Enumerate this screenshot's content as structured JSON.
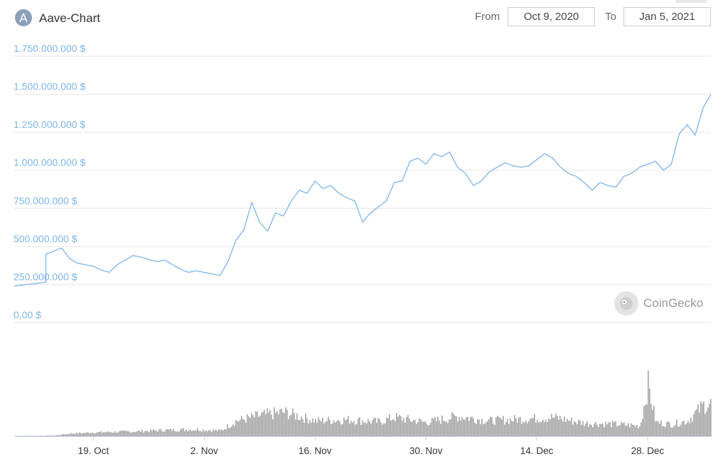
{
  "header": {
    "title": "Aave-Chart",
    "from_label": "From",
    "from_value": "Oct 9, 2020",
    "to_label": "To",
    "to_value": "Jan 5, 2021"
  },
  "watermark": {
    "text": "CoinGecko",
    "icon": "gecko-icon"
  },
  "colors": {
    "line": "#7cb5ec",
    "volume": "#a3a3a3",
    "grid": "#e6e6e6"
  },
  "chart_data": {
    "type": "line",
    "ylabel": "",
    "xlabel": "",
    "ylim": [
      0,
      1750000000
    ],
    "ytick_labels": [
      "0,00 $",
      "250.000.000 $",
      "500.000.000 $",
      "750.000.000 $",
      "1.000.000.000 $",
      "1.250.000.000 $",
      "1.500.000.000 $",
      "1.750.000.000 $"
    ],
    "ytick_values": [
      0,
      250000000,
      500000000,
      750000000,
      1000000000,
      1250000000,
      1500000000,
      1750000000
    ],
    "xtick_labels": [
      "19. Oct",
      "2. Nov",
      "16. Nov",
      "30. Nov",
      "14. Dec",
      "28. Dec"
    ],
    "xtick_dates": [
      "2020-10-19",
      "2020-11-02",
      "2020-11-16",
      "2020-11-30",
      "2020-12-14",
      "2020-12-28"
    ],
    "x_range": [
      "2020-10-09",
      "2021-01-05"
    ],
    "grid": true,
    "series": [
      {
        "values_unit": "USD",
        "x": [
          "2020-10-09",
          "2020-10-13",
          "2020-10-13",
          "2020-10-14",
          "2020-10-15",
          "2020-10-16",
          "2020-10-17",
          "2020-10-18",
          "2020-10-19",
          "2020-10-20",
          "2020-10-21",
          "2020-10-22",
          "2020-10-24",
          "2020-10-25",
          "2020-10-26",
          "2020-10-27",
          "2020-10-28",
          "2020-10-29",
          "2020-10-30",
          "2020-10-31",
          "2020-11-01",
          "2020-11-02",
          "2020-11-03",
          "2020-11-04",
          "2020-11-05",
          "2020-11-06",
          "2020-11-07",
          "2020-11-08",
          "2020-11-09",
          "2020-11-10",
          "2020-11-11",
          "2020-11-12",
          "2020-11-13",
          "2020-11-14",
          "2020-11-15",
          "2020-11-16",
          "2020-11-17",
          "2020-11-18",
          "2020-11-19",
          "2020-11-20",
          "2020-11-21",
          "2020-11-22",
          "2020-11-23",
          "2020-11-24",
          "2020-11-25",
          "2020-11-26",
          "2020-11-27",
          "2020-11-28",
          "2020-11-29",
          "2020-11-30",
          "2020-12-01",
          "2020-12-02",
          "2020-12-03",
          "2020-12-04",
          "2020-12-05",
          "2020-12-06",
          "2020-12-07",
          "2020-12-08",
          "2020-12-09",
          "2020-12-10",
          "2020-12-11",
          "2020-12-12",
          "2020-12-13",
          "2020-12-14",
          "2020-12-15",
          "2020-12-16",
          "2020-12-17",
          "2020-12-18",
          "2020-12-19",
          "2020-12-20",
          "2020-12-21",
          "2020-12-22",
          "2020-12-23",
          "2020-12-24",
          "2020-12-25",
          "2020-12-26",
          "2020-12-27",
          "2020-12-28",
          "2020-12-29",
          "2020-12-30",
          "2020-12-31",
          "2021-01-01",
          "2021-01-02",
          "2021-01-03",
          "2021-01-04",
          "2021-01-05"
        ],
        "values": [
          240000000,
          265000000,
          450000000,
          470000000,
          490000000,
          420000000,
          390000000,
          380000000,
          370000000,
          345000000,
          330000000,
          380000000,
          440000000,
          430000000,
          415000000,
          400000000,
          410000000,
          380000000,
          350000000,
          330000000,
          340000000,
          330000000,
          320000000,
          310000000,
          400000000,
          540000000,
          610000000,
          790000000,
          660000000,
          600000000,
          720000000,
          700000000,
          800000000,
          870000000,
          850000000,
          930000000,
          880000000,
          900000000,
          850000000,
          820000000,
          800000000,
          660000000,
          720000000,
          760000000,
          800000000,
          920000000,
          930000000,
          1060000000,
          1080000000,
          1040000000,
          1110000000,
          1090000000,
          1120000000,
          1020000000,
          980000000,
          900000000,
          930000000,
          990000000,
          1020000000,
          1050000000,
          1030000000,
          1020000000,
          1030000000,
          1070000000,
          1110000000,
          1080000000,
          1020000000,
          980000000,
          960000000,
          920000000,
          870000000,
          920000000,
          900000000,
          890000000,
          960000000,
          980000000,
          1020000000,
          1040000000,
          1060000000,
          1000000000,
          1040000000,
          1240000000,
          1300000000,
          1230000000,
          1410000000,
          1500000000
        ]
      }
    ],
    "volume": {
      "note_unit": "relative",
      "x": [
        "2020-10-09",
        "2020-10-14",
        "2020-10-16",
        "2020-10-20",
        "2020-10-24",
        "2020-10-28",
        "2020-11-01",
        "2020-11-04",
        "2020-11-06",
        "2020-11-09",
        "2020-11-12",
        "2020-11-16",
        "2020-11-20",
        "2020-11-24",
        "2020-11-26",
        "2020-11-30",
        "2020-12-04",
        "2020-12-08",
        "2020-12-12",
        "2020-12-16",
        "2020-12-20",
        "2020-12-24",
        "2020-12-27",
        "2020-12-28",
        "2020-12-29",
        "2020-12-31",
        "2021-01-02",
        "2021-01-04",
        "2021-01-05"
      ],
      "values": [
        1,
        2,
        8,
        12,
        14,
        18,
        20,
        16,
        45,
        60,
        70,
        45,
        48,
        42,
        55,
        40,
        58,
        45,
        50,
        55,
        38,
        35,
        30,
        150,
        40,
        35,
        45,
        90,
        95
      ]
    }
  }
}
